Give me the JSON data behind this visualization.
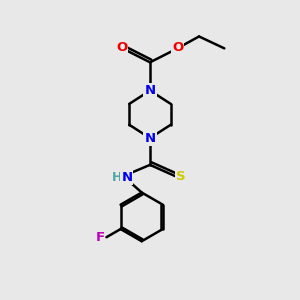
{
  "bg_color": "#e8e8e8",
  "bond_color": "#000000",
  "N_color": "#0000ee",
  "O_color": "#ee0000",
  "S_color": "#cccc00",
  "F_color": "#bb00bb",
  "H_color": "#4da6a6",
  "bond_width": 1.8,
  "figsize": [
    3.0,
    3.0
  ],
  "dpi": 100,
  "xlim": [
    0,
    10
  ],
  "ylim": [
    0,
    10
  ]
}
